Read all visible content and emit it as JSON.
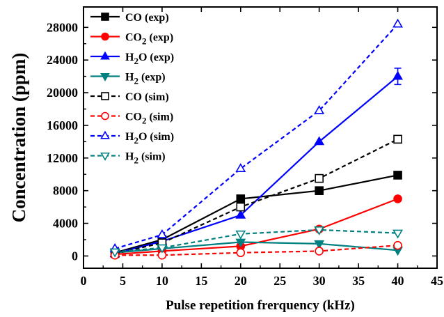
{
  "chart_data": {
    "type": "line",
    "xlabel": "Pulse repetition frerquency (kHz)",
    "ylabel": "Concentration (ppm)",
    "xlim": [
      0,
      45
    ],
    "ylim": [
      -1500,
      30500
    ],
    "xticks": [
      0,
      5,
      10,
      15,
      20,
      25,
      30,
      35,
      40,
      45
    ],
    "yticks": [
      0,
      4000,
      8000,
      12000,
      16000,
      20000,
      24000,
      28000
    ],
    "grid": false,
    "legend_position": "top-left",
    "series": [
      {
        "name": "CO (exp)",
        "label_main": "CO",
        "label_sub": "",
        "label_tail": " (exp)",
        "color": "#000000",
        "marker": "square",
        "filled": true,
        "dashed": false,
        "x": [
          4,
          10,
          20,
          30,
          40
        ],
        "y": [
          400,
          2000,
          7000,
          8000,
          9900
        ]
      },
      {
        "name": "CO2 (exp)",
        "label_main": "CO",
        "label_sub": "2",
        "label_tail": " (exp)",
        "color": "#ff0000",
        "marker": "circle",
        "filled": true,
        "dashed": false,
        "x": [
          4,
          10,
          20,
          30,
          40
        ],
        "y": [
          200,
          600,
          1200,
          3300,
          7000
        ]
      },
      {
        "name": "H2O (exp)",
        "label_main": "H",
        "label_sub": "2",
        "label_tail": "O (exp)",
        "color": "#0000ff",
        "marker": "triangle-up",
        "filled": true,
        "dashed": false,
        "x": [
          4,
          10,
          20,
          30,
          40
        ],
        "y": [
          300,
          1800,
          5000,
          14000,
          22000
        ]
      },
      {
        "name": "H2 (exp)",
        "label_main": "H",
        "label_sub": "2",
        "label_tail": " (exp)",
        "color": "#008080",
        "marker": "triangle-down",
        "filled": true,
        "dashed": false,
        "x": [
          4,
          10,
          20,
          30,
          40
        ],
        "y": [
          400,
          900,
          1700,
          1500,
          700
        ]
      },
      {
        "name": "CO (sim)",
        "label_main": "CO",
        "label_sub": "",
        "label_tail": " (sim)",
        "color": "#000000",
        "marker": "square",
        "filled": false,
        "dashed": true,
        "x": [
          4,
          10,
          20,
          30,
          40
        ],
        "y": [
          300,
          1600,
          6000,
          9500,
          14300
        ]
      },
      {
        "name": "CO2 (sim)",
        "label_main": "CO",
        "label_sub": "2",
        "label_tail": " (sim)",
        "color": "#ff0000",
        "marker": "circle",
        "filled": false,
        "dashed": true,
        "x": [
          4,
          10,
          20,
          30,
          40
        ],
        "y": [
          100,
          100,
          400,
          600,
          1300
        ]
      },
      {
        "name": "H2O (sim)",
        "label_main": "H",
        "label_sub": "2",
        "label_tail": "O (sim)",
        "color": "#0000ff",
        "marker": "triangle-up",
        "filled": false,
        "dashed": true,
        "x": [
          4,
          10,
          20,
          30,
          40
        ],
        "y": [
          900,
          2600,
          10700,
          17800,
          28400
        ]
      },
      {
        "name": "H2 (sim)",
        "label_main": "H",
        "label_sub": "2",
        "label_tail": " (sim)",
        "color": "#008080",
        "marker": "triangle-down",
        "filled": false,
        "dashed": true,
        "x": [
          4,
          10,
          20,
          30,
          40
        ],
        "y": [
          500,
          1000,
          2700,
          3200,
          2800
        ]
      }
    ],
    "error_bars": [
      {
        "series": "H2O (exp)",
        "x": 40,
        "low": 21000,
        "high": 23000
      }
    ]
  }
}
